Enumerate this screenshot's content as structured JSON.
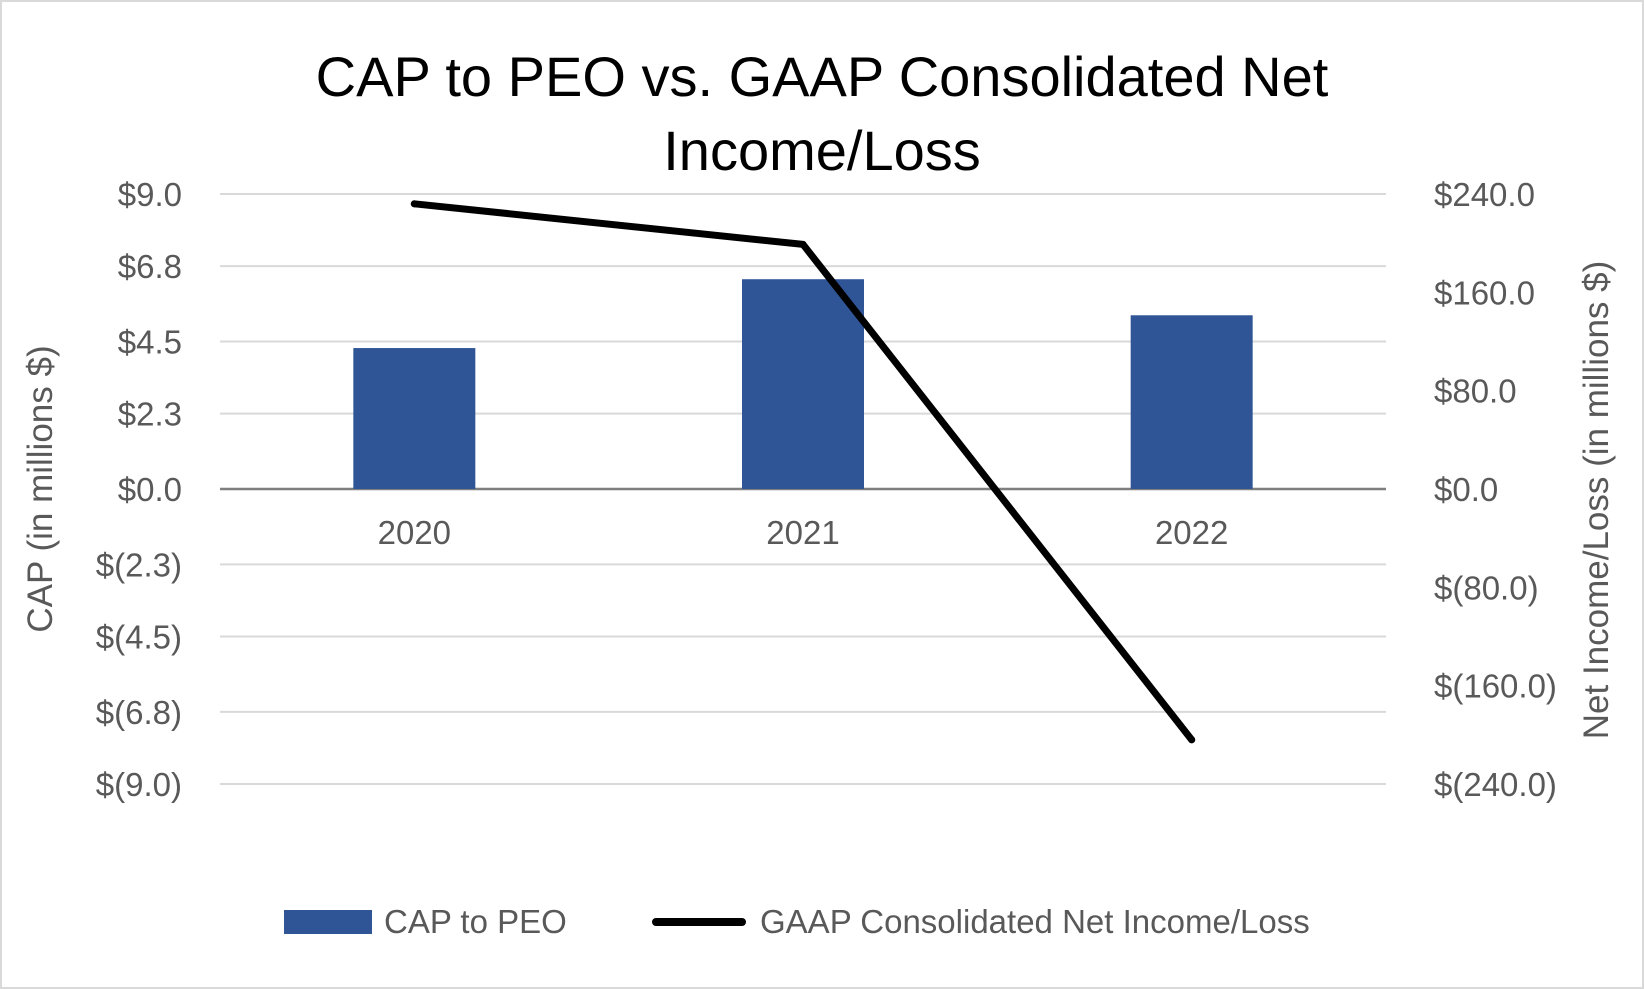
{
  "chart_data": {
    "type": "bar",
    "title": "CAP to PEO vs. GAAP Consolidated Net Income/Loss",
    "title_lines": [
      "CAP to PEO vs. GAAP Consolidated Net",
      "Income/Loss"
    ],
    "categories": [
      "2020",
      "2021",
      "2022"
    ],
    "series": [
      {
        "name": "CAP to PEO",
        "kind": "bar",
        "axis": "left",
        "color": "#2f5597",
        "values": [
          4.3,
          6.4,
          5.3
        ]
      },
      {
        "name": "GAAP Consolidated Net Income/Loss",
        "kind": "line",
        "axis": "right",
        "color": "#000000",
        "values": [
          232.0,
          199.0,
          -204.0
        ]
      }
    ],
    "ylabel": "CAP (in millions $)",
    "y2label": "Net Income/Loss (in millions $)",
    "ylim": [
      -9.0,
      9.0
    ],
    "y2lim": [
      -240.0,
      240.0
    ],
    "yticks": [
      9.0,
      6.8,
      4.5,
      2.3,
      0.0,
      -2.3,
      -4.5,
      -6.8,
      -9.0
    ],
    "ytick_labels": [
      "$9.0",
      "$6.8",
      "$4.5",
      "$2.3",
      "$0.0",
      "$(2.3)",
      "$(4.5)",
      "$(6.8)",
      "$(9.0)"
    ],
    "y2ticks": [
      240.0,
      160.0,
      80.0,
      0.0,
      -80.0,
      -160.0,
      -240.0
    ],
    "y2tick_labels": [
      "$240.0",
      "$160.0",
      "$80.0",
      "$0.0",
      "$(80.0)",
      "$(160.0)",
      "$(240.0)"
    ],
    "grid": true,
    "legend_position": "bottom-center",
    "colors": {
      "grid": "#d9d9d9",
      "zero_line": "#7f7f7f",
      "axis_text": "#595959",
      "title": "#000000",
      "border": "#d9d9d9"
    }
  }
}
